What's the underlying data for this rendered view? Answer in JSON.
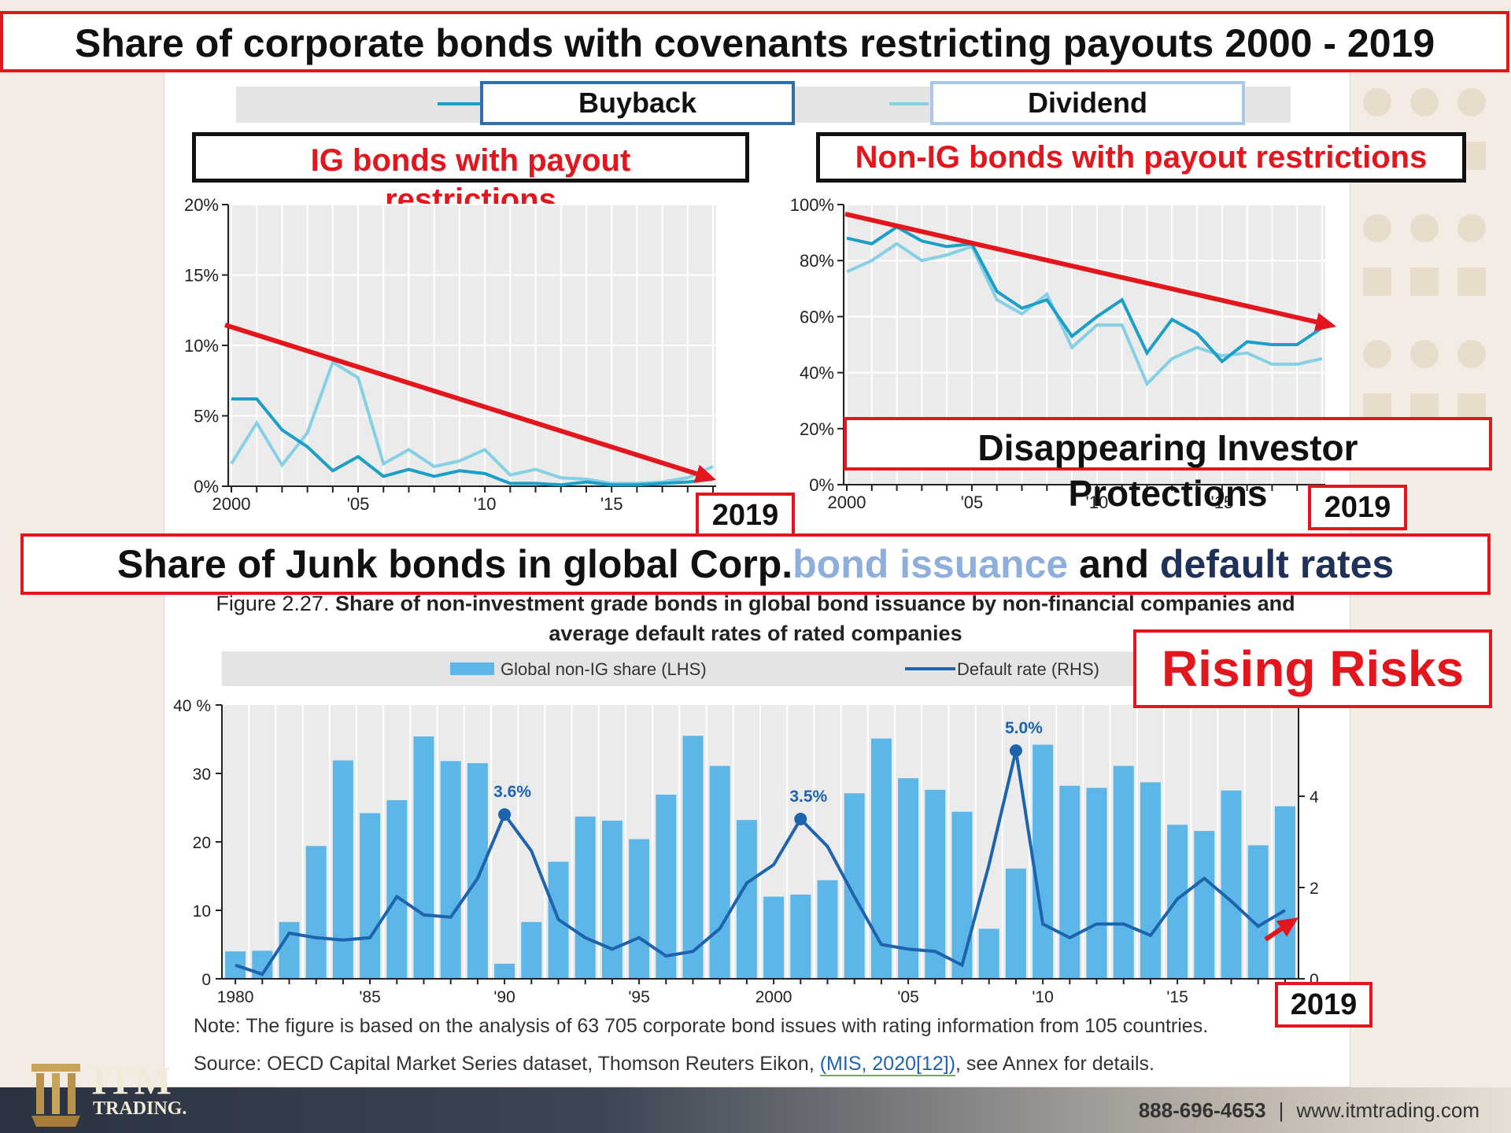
{
  "slide_title": "Share of corporate bonds with covenants restricting payouts 2000 - 2019",
  "legend_top": {
    "buyback": "Buyback",
    "dividend": "Dividend"
  },
  "ig_box": "IG bonds with payout restrictions",
  "nonig_box": "Non-IG bonds with payout restrictions",
  "protect_box": "Disappearing Investor Protections",
  "junk_title": {
    "part1": "Share of Junk bonds in global Corp. ",
    "part2": "bond issuance",
    "part3": " and ",
    "part4": "default rates"
  },
  "rising_box": "Rising Risks",
  "year_tag": "2019",
  "figure_caption": {
    "prefix": "Figure 2.27.",
    "bold1": "Share of non-investment grade bonds in global bond issuance by non-financial companies and",
    "bold2": "average default rates of rated companies"
  },
  "note": "Note: The figure is based on the analysis of 63 705 corporate bond issues with rating information from 105 countries.",
  "source_prefix": "Source: OECD Capital Market Series dataset, Thomson Reuters Eikon, ",
  "source_link": "(MIS, 2020[12])",
  "source_suffix": ", see Annex for details.",
  "footer": {
    "logo_top": "ITM",
    "logo_bottom": "TRADING.",
    "phone": "888-696-4653",
    "divider": "|",
    "website": "www.itmtrading.com"
  },
  "colors": {
    "red": "#e3151d",
    "buyback": "#1b9fc6",
    "dividend": "#86d0e6",
    "bar": "#5cb7e8",
    "default_line": "#1e63ad",
    "navy": "#1f3158",
    "light_blue_text": "#8eaedc"
  },
  "chart_data": [
    {
      "type": "line",
      "x": [
        2000,
        2001,
        2002,
        2003,
        2004,
        2005,
        2006,
        2007,
        2008,
        2009,
        2010,
        2011,
        2012,
        2013,
        2014,
        2015,
        2016,
        2017,
        2018,
        2019
      ],
      "xtick_labels": [
        "2000",
        "'05",
        "'10",
        "'15"
      ],
      "ytick_labels": [
        "0%",
        "5%",
        "10%",
        "15%",
        "20%"
      ],
      "ylim": [
        0,
        20
      ],
      "series": [
        {
          "name": "Buyback",
          "values": [
            6.2,
            6.2,
            4.0,
            2.8,
            1.1,
            2.1,
            0.7,
            1.2,
            0.7,
            1.1,
            0.9,
            0.2,
            0.2,
            0.1,
            0.3,
            0.1,
            0.1,
            0.2,
            0.3,
            0.5
          ]
        },
        {
          "name": "Dividend",
          "values": [
            1.6,
            4.5,
            1.5,
            3.8,
            8.8,
            7.7,
            1.6,
            2.6,
            1.4,
            1.8,
            2.6,
            0.8,
            1.2,
            0.6,
            0.5,
            0.2,
            0.2,
            0.3,
            0.6,
            1.4
          ]
        }
      ]
    },
    {
      "type": "line",
      "x": [
        2000,
        2001,
        2002,
        2003,
        2004,
        2005,
        2006,
        2007,
        2008,
        2009,
        2010,
        2011,
        2012,
        2013,
        2014,
        2015,
        2016,
        2017,
        2018,
        2019
      ],
      "xtick_labels": [
        "2000",
        "'05",
        "'10",
        "'15"
      ],
      "ytick_labels": [
        "0%",
        "20%",
        "40%",
        "60%",
        "80%",
        "100%"
      ],
      "ylim": [
        0,
        100
      ],
      "series": [
        {
          "name": "Buyback",
          "values": [
            88,
            86,
            92,
            87,
            85,
            86,
            69,
            63,
            66,
            53,
            60,
            66,
            47,
            59,
            54,
            44,
            51,
            50,
            50,
            56
          ]
        },
        {
          "name": "Dividend",
          "values": [
            76,
            80,
            86,
            80,
            82,
            85,
            66,
            61,
            68,
            49,
            57,
            57,
            36,
            45,
            49,
            46,
            47,
            43,
            43,
            45
          ]
        }
      ]
    },
    {
      "type": "bar",
      "x": [
        1980,
        1981,
        1982,
        1983,
        1984,
        1985,
        1986,
        1987,
        1988,
        1989,
        1990,
        1991,
        1992,
        1993,
        1994,
        1995,
        1996,
        1997,
        1998,
        1999,
        2000,
        2001,
        2002,
        2003,
        2004,
        2005,
        2006,
        2007,
        2008,
        2009,
        2010,
        2011,
        2012,
        2013,
        2014,
        2015,
        2016,
        2017,
        2018,
        2019
      ],
      "xtick_labels": [
        "1980",
        "'85",
        "'90",
        "'95",
        "2000",
        "'05",
        "'10",
        "'15"
      ],
      "legend": [
        "Global non-IG share (LHS)",
        "Default rate (RHS)"
      ],
      "left_ytick_labels": [
        "0",
        "10",
        "20",
        "30",
        "40 %"
      ],
      "right_ytick_labels": [
        "0",
        "2",
        "4"
      ],
      "ylim_left": [
        0,
        40
      ],
      "ylim_right": [
        0,
        6
      ],
      "series": [
        {
          "name": "Global non-IG share (LHS)",
          "values": [
            4.0,
            4.1,
            8.3,
            19.4,
            31.9,
            24.2,
            26.1,
            35.4,
            31.8,
            31.5,
            2.2,
            8.3,
            17.1,
            23.7,
            23.1,
            20.4,
            26.9,
            35.5,
            31.1,
            23.2,
            12.0,
            12.3,
            14.4,
            27.1,
            35.1,
            29.3,
            27.6,
            24.4,
            7.3,
            16.1,
            34.2,
            28.2,
            27.9,
            31.1,
            28.7,
            22.5,
            21.6,
            27.5,
            19.5,
            25.2
          ]
        },
        {
          "name": "Default rate (RHS)",
          "values": [
            0.3,
            0.1,
            1.0,
            0.9,
            0.85,
            0.9,
            1.8,
            1.4,
            1.35,
            2.2,
            3.6,
            2.8,
            1.3,
            0.9,
            0.65,
            0.9,
            0.5,
            0.6,
            1.1,
            2.1,
            2.5,
            3.5,
            2.9,
            1.8,
            0.75,
            0.65,
            0.6,
            0.3,
            2.5,
            5.0,
            1.2,
            0.9,
            1.2,
            1.2,
            0.95,
            1.75,
            2.2,
            1.7,
            1.15,
            1.5
          ]
        }
      ],
      "annotations": [
        {
          "x": 1990,
          "label": "3.6%"
        },
        {
          "x": 2001,
          "label": "3.5%"
        },
        {
          "x": 2009,
          "label": "5.0%"
        }
      ]
    }
  ]
}
